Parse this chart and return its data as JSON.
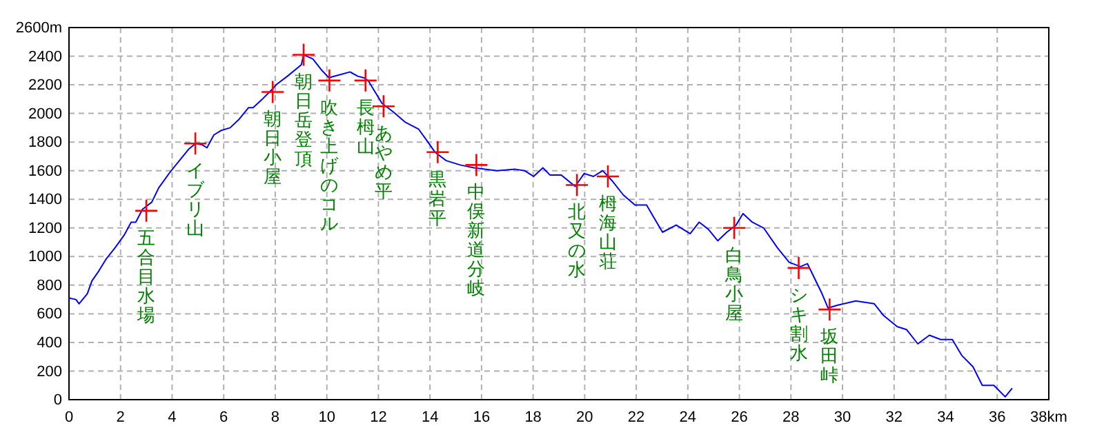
{
  "chart_data": {
    "type": "line",
    "xlim": [
      0,
      38
    ],
    "ylim": [
      0,
      2600
    ],
    "xticks": [
      0,
      2,
      4,
      6,
      8,
      10,
      12,
      14,
      16,
      18,
      20,
      22,
      24,
      26,
      28,
      30,
      32,
      34,
      36,
      {
        "value": 38,
        "label": "38km"
      }
    ],
    "yticks": [
      0,
      200,
      400,
      600,
      800,
      1000,
      1200,
      1400,
      1600,
      1800,
      2000,
      2200,
      2400,
      {
        "value": 2600,
        "label": "2600m"
      }
    ],
    "grid": true,
    "series": [
      {
        "color": "#0000ff",
        "x": [
          0,
          0.27,
          0.39,
          0.71,
          0.89,
          1.16,
          1.43,
          1.78,
          2.14,
          2.41,
          2.59,
          2.85,
          3.21,
          3.48,
          3.92,
          4.28,
          4.64,
          4.91,
          5.18,
          5.35,
          5.62,
          5.89,
          6.25,
          6.6,
          6.96,
          7.14,
          7.5,
          7.94,
          8.03,
          8.47,
          9.01,
          9.1,
          9.46,
          9.81,
          10.08,
          10.5,
          10.9,
          11.2,
          11.42,
          11.6,
          12.14,
          12.58,
          13.03,
          13.56,
          13.92,
          14.19,
          14.63,
          15.17,
          15.7,
          16.6,
          17.31,
          17.67,
          18.02,
          18.38,
          18.65,
          19.09,
          19.63,
          19.98,
          20.34,
          20.7,
          21.06,
          21.5,
          21.95,
          22.4,
          22.66,
          23.02,
          23.55,
          24.09,
          24.44,
          24.8,
          25.16,
          25.51,
          25.87,
          26.14,
          26.5,
          26.94,
          27.48,
          27.93,
          28.37,
          28.64,
          28.91,
          29.18,
          29.44,
          29.8,
          30.51,
          31.23,
          31.58,
          32.12,
          32.48,
          32.92,
          33.37,
          33.81,
          34.26,
          34.62,
          35.06,
          35.42,
          35.87,
          36.31,
          36.58
        ],
        "values": [
          710,
          700,
          670,
          740,
          830,
          900,
          980,
          1060,
          1150,
          1240,
          1240,
          1330,
          1380,
          1480,
          1590,
          1670,
          1750,
          1790,
          1780,
          1760,
          1850,
          1880,
          1900,
          1960,
          2040,
          2040,
          2100,
          2180,
          2200,
          2260,
          2340,
          2410,
          2380,
          2300,
          2250,
          2270,
          2290,
          2260,
          2250,
          2230,
          2070,
          2010,
          1940,
          1890,
          1800,
          1730,
          1670,
          1640,
          1620,
          1600,
          1610,
          1600,
          1560,
          1620,
          1570,
          1570,
          1490,
          1580,
          1560,
          1600,
          1530,
          1430,
          1360,
          1360,
          1280,
          1170,
          1220,
          1160,
          1240,
          1190,
          1110,
          1170,
          1220,
          1300,
          1240,
          1200,
          1060,
          960,
          930,
          950,
          850,
          750,
          640,
          660,
          690,
          670,
          590,
          510,
          490,
          390,
          450,
          420,
          420,
          310,
          230,
          100,
          100,
          20,
          80
        ]
      },
      {
        "type": "scatter",
        "color": "#ff0000",
        "marker": "cross",
        "x": [
          3.0,
          4.9,
          7.9,
          9.1,
          10.1,
          11.5,
          12.2,
          14.3,
          15.8,
          19.7,
          20.9,
          25.8,
          28.3,
          29.5
        ],
        "values": [
          1320,
          1790,
          2150,
          2410,
          2230,
          2230,
          2050,
          1730,
          1640,
          1500,
          1560,
          1200,
          920,
          630
        ]
      }
    ],
    "annotations": [
      {
        "text": "五合目水場",
        "x": 3.0,
        "y": 1320
      },
      {
        "text": "イブリ山",
        "x": 4.9,
        "y": 1790
      },
      {
        "text": "朝日小屋",
        "x": 7.9,
        "y": 2150
      },
      {
        "text": "朝日岳登頂",
        "x": 9.1,
        "y": 2410
      },
      {
        "text": "吹き上げのコル",
        "x": 10.1,
        "y": 2230
      },
      {
        "text": "長栂山",
        "x": 11.5,
        "y": 2230
      },
      {
        "text": "あやめ平",
        "x": 12.2,
        "y": 2050
      },
      {
        "text": "黒岩平",
        "x": 14.3,
        "y": 1730
      },
      {
        "text": "中俣新道分岐",
        "x": 15.8,
        "y": 1640
      },
      {
        "text": "北又の水",
        "x": 19.7,
        "y": 1500
      },
      {
        "text": "栂海山荘",
        "x": 20.9,
        "y": 1560
      },
      {
        "text": "白鳥小屋",
        "x": 25.8,
        "y": 1200
      },
      {
        "text": "シキ割水",
        "x": 28.3,
        "y": 920
      },
      {
        "text": "坂田峠",
        "x": 29.5,
        "y": 630
      }
    ]
  }
}
